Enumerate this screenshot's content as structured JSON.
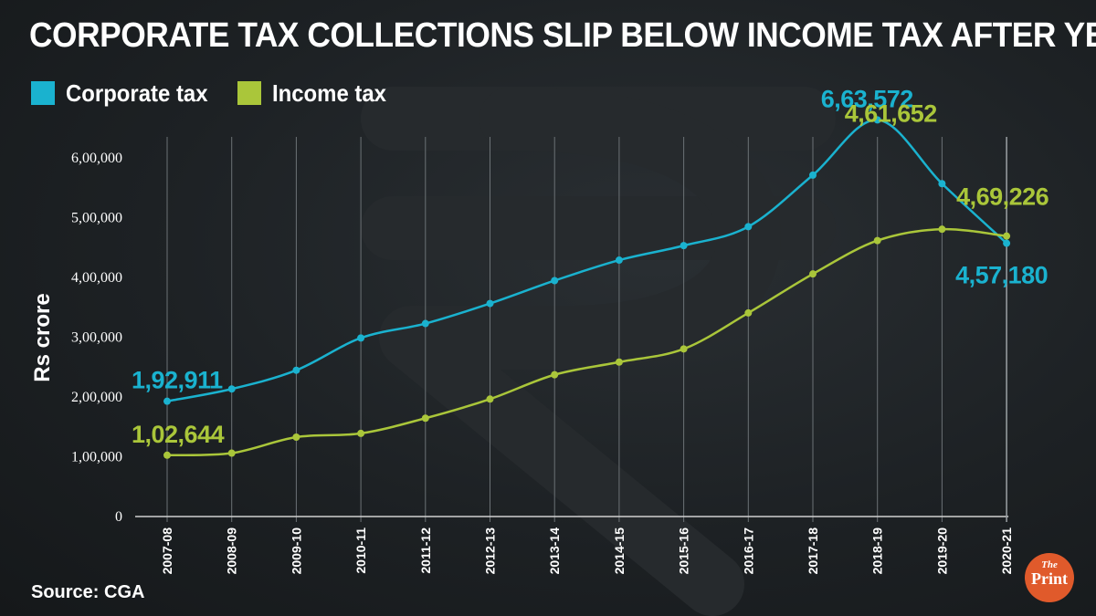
{
  "title": "CORPORATE TAX COLLECTIONS SLIP BELOW INCOME TAX AFTER YEARS",
  "source": "Source: CGA",
  "brand": {
    "the": "The",
    "print": "Print"
  },
  "colors": {
    "corporate": "#1ab2cf",
    "income": "#aac63a",
    "background": "#1d2124"
  },
  "chart_data": {
    "type": "line",
    "x": [
      "2007-08",
      "2008-09",
      "2009-10",
      "2010-11",
      "2011-12",
      "2012-13",
      "2013-14",
      "2014-15",
      "2015-16",
      "2016-17",
      "2017-18",
      "2018-19",
      "2019-20",
      "2020-21"
    ],
    "series": [
      {
        "name": "Corporate tax",
        "color": "#1ab2cf",
        "values": [
          192911,
          213395,
          244725,
          298688,
          322816,
          356326,
          394677,
          428925,
          453228,
          484924,
          571202,
          663572,
          556876,
          457180
        ]
      },
      {
        "name": "Income tax",
        "color": "#aac63a",
        "values": [
          102644,
          106046,
          132833,
          139069,
          164485,
          196512,
          237193,
          258374,
          280390,
          340592,
          405835,
          461652,
          480657,
          469226
        ]
      }
    ],
    "ylabel": "Rs crore",
    "xlabel": "",
    "ylim": [
      0,
      700000
    ],
    "yticks": [
      {
        "value": 0,
        "label": "0"
      },
      {
        "value": 100000,
        "label": "1,00,000"
      },
      {
        "value": 200000,
        "label": "2,00,000"
      },
      {
        "value": 300000,
        "label": "3,00,000"
      },
      {
        "value": 400000,
        "label": "4,00,000"
      },
      {
        "value": 500000,
        "label": "5,00,000"
      },
      {
        "value": 600000,
        "label": "6,00,000"
      }
    ],
    "annotations": [
      {
        "series": 0,
        "index": 0,
        "text": "1,92,911"
      },
      {
        "series": 1,
        "index": 0,
        "text": "1,02,644"
      },
      {
        "series": 0,
        "index": 11,
        "text": "6,63,572"
      },
      {
        "series": 1,
        "index": 11,
        "text": "4,61,652"
      },
      {
        "series": 1,
        "index": 13,
        "text": "4,69,226"
      },
      {
        "series": 0,
        "index": 13,
        "text": "4,57,180"
      }
    ],
    "grid": "vertical",
    "legend": "top-left"
  }
}
